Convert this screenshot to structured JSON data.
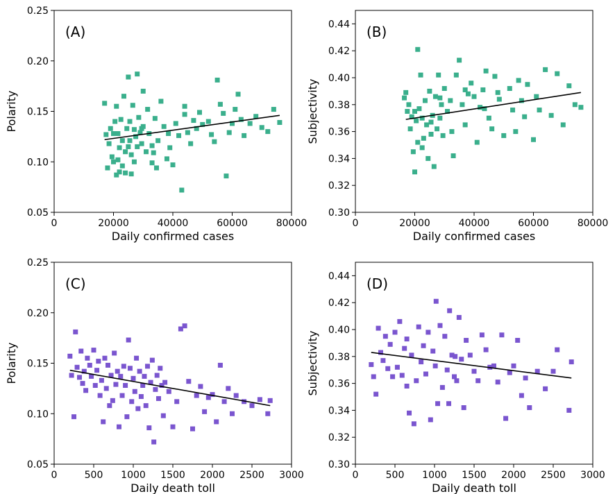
{
  "chart_data": [
    {
      "panel_label": "(A)",
      "type": "scatter",
      "xlabel": "Daily confirmed cases",
      "ylabel": "Polarity",
      "xlim": [
        0,
        80000
      ],
      "ylim": [
        0.05,
        0.25
      ],
      "xticks": [
        "0",
        "20000",
        "40000",
        "60000",
        "80000"
      ],
      "yticks": [
        "0.05",
        "0.10",
        "0.15",
        "0.20",
        "0.25"
      ],
      "point_color": "#3aaf8c",
      "marker": "square",
      "trend_line": {
        "x": [
          17000,
          76000
        ],
        "y": [
          0.122,
          0.146
        ]
      },
      "points": {
        "x": [
          17000,
          17500,
          18000,
          18500,
          19000,
          19500,
          20000,
          20000,
          20500,
          21000,
          21000,
          21500,
          22000,
          22000,
          22500,
          23000,
          23000,
          23500,
          24000,
          24000,
          24500,
          25000,
          25000,
          25500,
          26000,
          26000,
          26500,
          27000,
          27000,
          27500,
          28000,
          28000,
          28500,
          29000,
          29500,
          30000,
          30000,
          31000,
          31500,
          32000,
          33000,
          33000,
          34000,
          34500,
          35000,
          36000,
          37000,
          38000,
          39000,
          40000,
          41000,
          42000,
          43000,
          44000,
          45000,
          46000,
          47000,
          48000,
          49000,
          50000,
          52000,
          53000,
          54000,
          55000,
          56000,
          57000,
          58000,
          59000,
          60000,
          61000,
          62000,
          63000,
          64000,
          66000,
          68000,
          70000,
          72000,
          74000,
          76000,
          21500,
          25500,
          29500,
          33500,
          38500,
          44000
        ],
        "y": [
          0.158,
          0.127,
          0.094,
          0.118,
          0.133,
          0.105,
          0.128,
          0.1,
          0.14,
          0.155,
          0.087,
          0.128,
          0.114,
          0.09,
          0.142,
          0.121,
          0.096,
          0.165,
          0.11,
          0.089,
          0.133,
          0.184,
          0.115,
          0.14,
          0.107,
          0.088,
          0.156,
          0.132,
          0.1,
          0.125,
          0.187,
          0.115,
          0.144,
          0.129,
          0.118,
          0.17,
          0.135,
          0.11,
          0.152,
          0.128,
          0.099,
          0.116,
          0.143,
          0.094,
          0.121,
          0.16,
          0.135,
          0.103,
          0.114,
          0.097,
          0.138,
          0.126,
          0.072,
          0.155,
          0.129,
          0.118,
          0.141,
          0.133,
          0.149,
          0.137,
          0.14,
          0.127,
          0.12,
          0.181,
          0.157,
          0.148,
          0.086,
          0.129,
          0.138,
          0.152,
          0.167,
          0.142,
          0.126,
          0.138,
          0.145,
          0.134,
          0.13,
          0.152,
          0.139,
          0.102,
          0.121,
          0.133,
          0.109,
          0.128,
          0.147
        ]
      }
    },
    {
      "panel_label": "(B)",
      "type": "scatter",
      "xlabel": "Daily confirmed cases",
      "ylabel": "Subjectivity",
      "xlim": [
        0,
        80000
      ],
      "ylim": [
        0.3,
        0.45
      ],
      "xticks": [
        "0",
        "20000",
        "40000",
        "60000",
        "80000"
      ],
      "yticks": [
        "0.30",
        "0.32",
        "0.34",
        "0.36",
        "0.38",
        "0.40",
        "0.42",
        "0.44"
      ],
      "point_color": "#3aaf8c",
      "marker": "square",
      "trend_line": {
        "x": [
          17000,
          76000
        ],
        "y": [
          0.369,
          0.389
        ]
      },
      "points": {
        "x": [
          16500,
          17000,
          17500,
          18000,
          18500,
          19000,
          19500,
          20000,
          20500,
          21000,
          21000,
          21500,
          22000,
          22500,
          23000,
          23500,
          24000,
          24500,
          25000,
          25500,
          26000,
          26500,
          27000,
          27500,
          28000,
          28500,
          29000,
          29500,
          30000,
          31000,
          32000,
          33000,
          34000,
          35000,
          36000,
          37000,
          38000,
          39000,
          40000,
          41000,
          42000,
          43000,
          44000,
          45000,
          46000,
          47000,
          48000,
          50000,
          52000,
          53000,
          54000,
          55000,
          56000,
          57000,
          58000,
          60000,
          61000,
          62000,
          64000,
          66000,
          68000,
          70000,
          72000,
          74000,
          76000,
          20000,
          22500,
          25500,
          28500,
          32500,
          37000,
          43500,
          48500
        ],
        "y": [
          0.385,
          0.389,
          0.375,
          0.38,
          0.362,
          0.371,
          0.345,
          0.33,
          0.368,
          0.421,
          0.352,
          0.377,
          0.402,
          0.37,
          0.355,
          0.383,
          0.365,
          0.34,
          0.39,
          0.358,
          0.372,
          0.334,
          0.386,
          0.362,
          0.402,
          0.37,
          0.38,
          0.357,
          0.392,
          0.375,
          0.383,
          0.342,
          0.402,
          0.413,
          0.38,
          0.365,
          0.388,
          0.396,
          0.386,
          0.352,
          0.378,
          0.391,
          0.405,
          0.37,
          0.362,
          0.401,
          0.389,
          0.357,
          0.392,
          0.376,
          0.36,
          0.398,
          0.383,
          0.371,
          0.395,
          0.354,
          0.386,
          0.376,
          0.406,
          0.372,
          0.403,
          0.365,
          0.394,
          0.38,
          0.378,
          0.375,
          0.348,
          0.367,
          0.385,
          0.36,
          0.391,
          0.377,
          0.384
        ]
      }
    },
    {
      "panel_label": "(C)",
      "type": "scatter",
      "xlabel": "Daily death toll",
      "ylabel": "Polarity",
      "xlim": [
        0,
        3000
      ],
      "ylim": [
        0.05,
        0.25
      ],
      "xticks": [
        "0",
        "500",
        "1000",
        "1500",
        "2000",
        "2500",
        "3000"
      ],
      "yticks": [
        "0.05",
        "0.10",
        "0.15",
        "0.20",
        "0.25"
      ],
      "point_color": "#7a55cf",
      "marker": "square",
      "trend_line": {
        "x": [
          200,
          2730
        ],
        "y": [
          0.143,
          0.108
        ]
      },
      "points": {
        "x": [
          200,
          220,
          250,
          270,
          290,
          320,
          340,
          360,
          380,
          400,
          420,
          450,
          470,
          500,
          520,
          540,
          560,
          580,
          600,
          620,
          640,
          660,
          680,
          700,
          720,
          740,
          760,
          780,
          800,
          820,
          840,
          860,
          880,
          900,
          920,
          940,
          960,
          980,
          1000,
          1020,
          1040,
          1060,
          1080,
          1100,
          1120,
          1140,
          1160,
          1180,
          1200,
          1220,
          1240,
          1260,
          1280,
          1300,
          1320,
          1340,
          1360,
          1380,
          1400,
          1450,
          1500,
          1550,
          1600,
          1650,
          1700,
          1750,
          1800,
          1850,
          1900,
          1950,
          2000,
          2050,
          2100,
          2150,
          2200,
          2250,
          2300,
          2400,
          2500,
          2600,
          2700,
          2730
        ],
        "y": [
          0.157,
          0.138,
          0.097,
          0.181,
          0.146,
          0.136,
          0.162,
          0.13,
          0.142,
          0.123,
          0.155,
          0.148,
          0.137,
          0.163,
          0.128,
          0.143,
          0.152,
          0.118,
          0.133,
          0.092,
          0.155,
          0.125,
          0.148,
          0.108,
          0.138,
          0.113,
          0.16,
          0.129,
          0.142,
          0.087,
          0.137,
          0.118,
          0.147,
          0.128,
          0.097,
          0.173,
          0.145,
          0.112,
          0.135,
          0.122,
          0.155,
          0.105,
          0.142,
          0.117,
          0.128,
          0.137,
          0.108,
          0.147,
          0.086,
          0.131,
          0.153,
          0.072,
          0.124,
          0.138,
          0.115,
          0.145,
          0.128,
          0.098,
          0.131,
          0.122,
          0.087,
          0.112,
          0.184,
          0.187,
          0.132,
          0.085,
          0.118,
          0.127,
          0.102,
          0.116,
          0.119,
          0.092,
          0.148,
          0.112,
          0.125,
          0.1,
          0.118,
          0.112,
          0.108,
          0.114,
          0.1,
          0.113
        ]
      }
    },
    {
      "panel_label": "(D)",
      "type": "scatter",
      "xlabel": "Daily death toll",
      "ylabel": "Subjectivity",
      "xlim": [
        0,
        3000
      ],
      "ylim": [
        0.3,
        0.45
      ],
      "xticks": [
        "0",
        "500",
        "1000",
        "1500",
        "2000",
        "2500",
        "3000"
      ],
      "yticks": [
        "0.30",
        "0.32",
        "0.34",
        "0.36",
        "0.38",
        "0.40",
        "0.42",
        "0.44"
      ],
      "point_color": "#7a55cf",
      "marker": "square",
      "trend_line": {
        "x": [
          200,
          2730
        ],
        "y": [
          0.383,
          0.364
        ]
      },
      "points": {
        "x": [
          200,
          230,
          260,
          290,
          320,
          350,
          380,
          410,
          440,
          470,
          500,
          530,
          560,
          590,
          620,
          650,
          680,
          710,
          740,
          770,
          800,
          830,
          860,
          890,
          920,
          950,
          980,
          1010,
          1040,
          1070,
          1100,
          1130,
          1160,
          1190,
          1220,
          1250,
          1280,
          1310,
          1340,
          1370,
          1400,
          1450,
          1500,
          1550,
          1600,
          1650,
          1700,
          1750,
          1800,
          1850,
          1900,
          1950,
          2000,
          2050,
          2100,
          2150,
          2200,
          2300,
          2400,
          2500,
          2550,
          2700,
          2730,
          650,
          1020,
          1180,
          1260
        ],
        "y": [
          0.374,
          0.365,
          0.352,
          0.401,
          0.383,
          0.377,
          0.395,
          0.371,
          0.389,
          0.365,
          0.398,
          0.372,
          0.406,
          0.366,
          0.386,
          0.393,
          0.338,
          0.381,
          0.33,
          0.362,
          0.402,
          0.376,
          0.388,
          0.367,
          0.398,
          0.333,
          0.384,
          0.373,
          0.345,
          0.403,
          0.357,
          0.395,
          0.37,
          0.414,
          0.381,
          0.365,
          0.362,
          0.409,
          0.378,
          0.342,
          0.392,
          0.381,
          0.369,
          0.362,
          0.396,
          0.385,
          0.372,
          0.373,
          0.361,
          0.396,
          0.334,
          0.368,
          0.373,
          0.392,
          0.351,
          0.364,
          0.342,
          0.369,
          0.356,
          0.369,
          0.385,
          0.34,
          0.376,
          0.358,
          0.421,
          0.345,
          0.38
        ]
      }
    }
  ]
}
